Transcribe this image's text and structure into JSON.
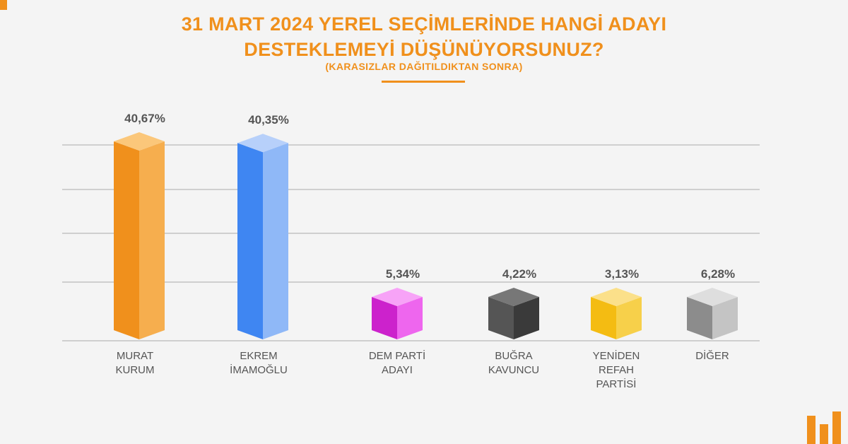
{
  "header": {
    "title_line1": "31 MART 2024 YEREL SEÇİMLERİNDE HANGİ ADAYI",
    "title_line2": "DESTEKLEMEYİ DÜŞÜNÜYORSUNUZ?",
    "subtitle": "(KARASIZLAR DAĞITILDIKTAN SONRA)"
  },
  "colors": {
    "accent": "#f0901c",
    "grid": "#cfcfcf",
    "label": "#555555"
  },
  "chart_data": {
    "type": "bar",
    "style": "3d-prism",
    "title": "31 MART 2024 YEREL SEÇİMLERİNDE HANGİ ADAYI DESTEKLEMEYİ DÜŞÜNÜYORSUNUZ?",
    "subtitle": "(KARASIZLAR DAĞITILDIKTAN SONRA)",
    "grid": true,
    "legend": "none",
    "ylim": [
      0,
      45
    ],
    "categories": [
      [
        "MURAT",
        "KURUM"
      ],
      [
        "EKREM",
        "İMAMOĞLU"
      ],
      [
        "DEM PARTİ",
        "ADAYI"
      ],
      [
        "BUĞRA",
        "KAVUNCU"
      ],
      [
        "YENİDEN",
        "REFAH",
        "PARTİSİ"
      ],
      [
        "DİĞER"
      ]
    ],
    "values": [
      40.67,
      40.35,
      5.34,
      4.22,
      3.13,
      6.28
    ],
    "value_labels": [
      "40,67%",
      "40,35%",
      "5,34%",
      "4,22%",
      "3,13%",
      "6,28%"
    ],
    "bar_colors": [
      {
        "front": "#f0901c",
        "side": "#f6ae4e",
        "top": "#fbc77a"
      },
      {
        "front": "#3f86f2",
        "side": "#8fb8f7",
        "top": "#b7d0fa"
      },
      {
        "front": "#cc22cc",
        "side": "#ee66ee",
        "top": "#f7a3f7"
      },
      {
        "front": "#555555",
        "side": "#3a3a3a",
        "top": "#777777"
      },
      {
        "front": "#f4bc12",
        "side": "#f7d04a",
        "top": "#fbe08a"
      },
      {
        "front": "#8c8c8c",
        "side": "#c4c4c4",
        "top": "#dedede"
      }
    ]
  }
}
